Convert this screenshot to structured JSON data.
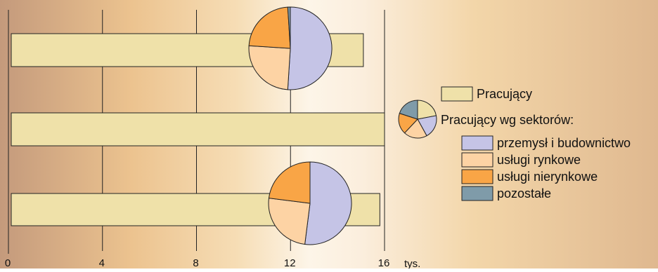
{
  "chart_data": {
    "type": "bar",
    "orientation": "horizontal",
    "unit_label": "tys.",
    "xlim": [
      0,
      16
    ],
    "x_ticks": [
      "0",
      "4",
      "8",
      "12",
      "16"
    ],
    "grid": true,
    "bars": [
      {
        "value": 15.1,
        "pie": [
          0.51,
          0.25,
          0.23,
          0.01
        ]
      },
      {
        "value": 16.0,
        "pie": null
      },
      {
        "value": 15.8,
        "pie": [
          0.52,
          0.25,
          0.23,
          0.0
        ]
      }
    ],
    "legend": {
      "placement": "right",
      "bar_label": "Pracujący",
      "pie_title": "Pracujący wg sektorów:",
      "sectors": [
        {
          "label": "przemysł i budownictwo",
          "color": "#c5c4e6"
        },
        {
          "label": "usługi rynkowe",
          "color": "#fdd3a4"
        },
        {
          "label": "usługi nierynkowe",
          "color": "#f9a546"
        },
        {
          "label": "pozostałe",
          "color": "#7f9ba9"
        }
      ],
      "legend_pie": [
        0.22,
        0.2,
        0.2,
        0.18,
        0.2
      ]
    },
    "colors": {
      "bar": "#efe1a9",
      "bar_stroke": "#222222",
      "grid": "#222222"
    }
  }
}
